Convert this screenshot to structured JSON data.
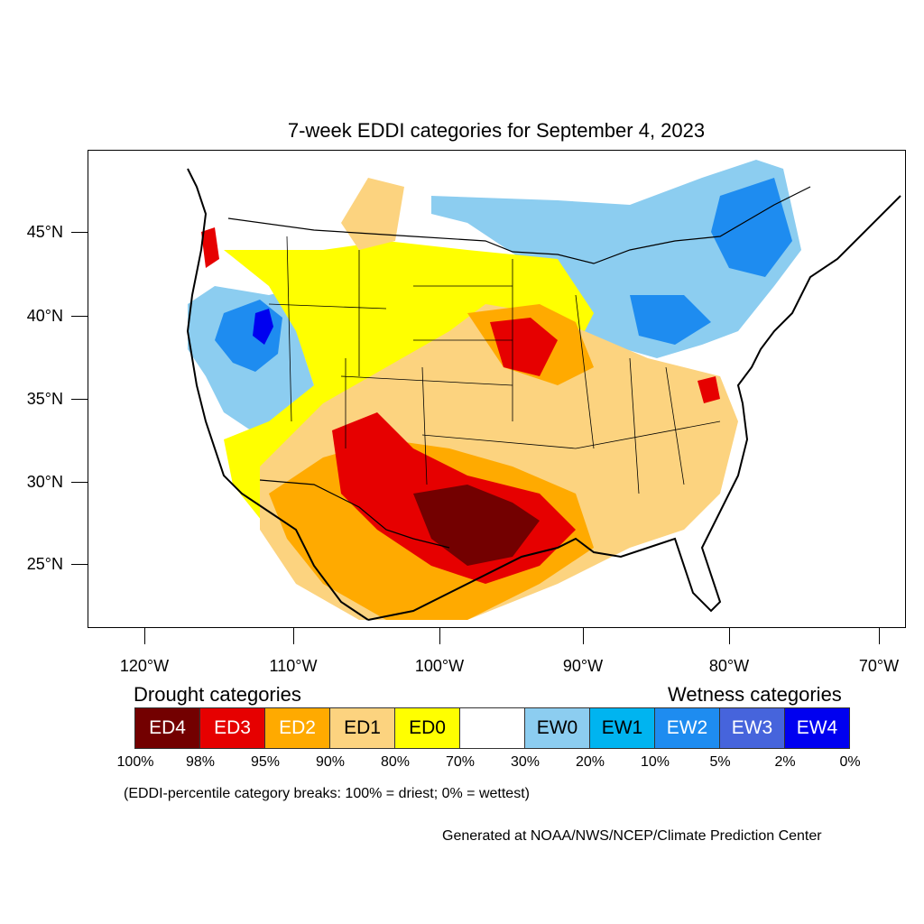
{
  "title": "7-week EDDI categories for September 4, 2023",
  "lat_labels": [
    "45°N",
    "40°N",
    "35°N",
    "30°N",
    "25°N"
  ],
  "lon_labels": [
    "120°W",
    "110°W",
    "100°W",
    "90°W",
    "80°W",
    "70°W"
  ],
  "legend": {
    "drought_heading": "Drought categories",
    "wetness_heading": "Wetness categories",
    "categories": [
      {
        "label": "ED4",
        "color": "#730000",
        "text_color": "#ffffff"
      },
      {
        "label": "ED3",
        "color": "#e60000",
        "text_color": "#ffffff"
      },
      {
        "label": "ED2",
        "color": "#ffaa00",
        "text_color": "#ffffff"
      },
      {
        "label": "ED1",
        "color": "#fcd37f",
        "text_color": "#000000"
      },
      {
        "label": "ED0",
        "color": "#ffff00",
        "text_color": "#000000"
      },
      {
        "label": "",
        "color": "#ffffff",
        "text_color": "#000000"
      },
      {
        "label": "EW0",
        "color": "#8ccdf0",
        "text_color": "#000000"
      },
      {
        "label": "EW1",
        "color": "#00b4f0",
        "text_color": "#000000"
      },
      {
        "label": "EW2",
        "color": "#1e8cf0",
        "text_color": "#ffffff"
      },
      {
        "label": "EW3",
        "color": "#4664dc",
        "text_color": "#ffffff"
      },
      {
        "label": "EW4",
        "color": "#0000f0",
        "text_color": "#ffffff"
      }
    ],
    "breaks": [
      "100%",
      "98%",
      "95%",
      "90%",
      "80%",
      "70%",
      "30%",
      "20%",
      "10%",
      "5%",
      "2%",
      "0%"
    ]
  },
  "note": "(EDDI-percentile category breaks: 100% = driest; 0% = wettest)",
  "credit": "Generated at NOAA/NWS/NCEP/Climate Prediction Center"
}
